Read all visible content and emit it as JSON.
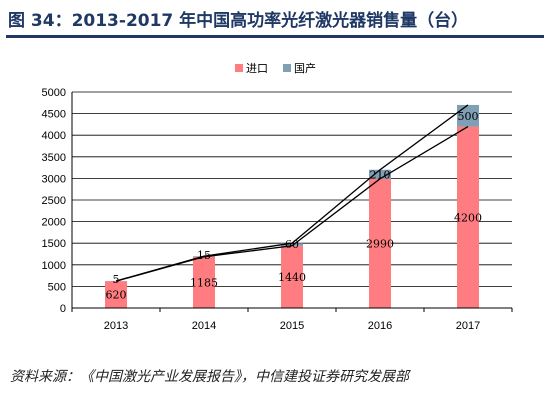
{
  "figure": {
    "title": "图 34：2013-2017 年中国高功率光纤激光器销售量（台）",
    "source": "资料来源：《中国激光产业发展报告》，中信建投证券研究发展部"
  },
  "chart_data": {
    "type": "bar",
    "stacked": true,
    "categories": [
      "2013",
      "2014",
      "2015",
      "2016",
      "2017"
    ],
    "series": [
      {
        "name": "进口",
        "values": [
          620,
          1185,
          1440,
          2990,
          4200
        ],
        "color": "#ff7c80"
      },
      {
        "name": "国产",
        "values": [
          5,
          15,
          60,
          210,
          500
        ],
        "color": "#7f9fb5"
      }
    ],
    "ylim": [
      0,
      5000
    ],
    "yticks": [
      "0",
      "500",
      "1000",
      "1500",
      "2000",
      "2500",
      "3000",
      "3500",
      "4000",
      "4500",
      "5000"
    ],
    "grid": true,
    "legend": "top-center",
    "trend_lines": [
      "top-of-import",
      "top-of-total"
    ]
  }
}
